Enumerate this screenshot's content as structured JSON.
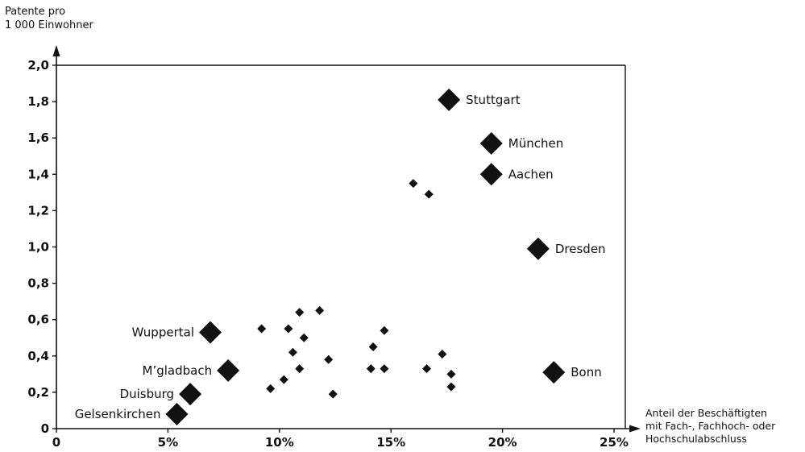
{
  "chart_data": {
    "type": "scatter",
    "title": "",
    "ylabel": "Patente pro\n1 000 Einwohner",
    "xlabel": "Anteil der Beschäftigten\nmit Fach-, Fachhoch- oder\nHochschulabschluss",
    "xlim": [
      0,
      25
    ],
    "ylim": [
      0,
      2.0
    ],
    "x_ticks": [
      0,
      5,
      10,
      15,
      20,
      25
    ],
    "x_tick_labels": [
      "0",
      "5%",
      "10%",
      "15%",
      "20%",
      "25%"
    ],
    "y_ticks": [
      0,
      0.2,
      0.4,
      0.6,
      0.8,
      1.0,
      1.2,
      1.4,
      1.6,
      1.8,
      2.0
    ],
    "y_tick_labels": [
      "0",
      "0,2",
      "0,4",
      "0,6",
      "0,8",
      "1,0",
      "1,2",
      "1,4",
      "1,6",
      "1,8",
      "2,0"
    ],
    "grid": false,
    "marker": "diamond",
    "labeled_points": [
      {
        "label": "Stuttgart",
        "x": 17.6,
        "y": 1.81,
        "label_side": "right"
      },
      {
        "label": "München",
        "x": 19.5,
        "y": 1.57,
        "label_side": "right"
      },
      {
        "label": "Aachen",
        "x": 19.5,
        "y": 1.4,
        "label_side": "right"
      },
      {
        "label": "Dresden",
        "x": 21.6,
        "y": 0.99,
        "label_side": "right"
      },
      {
        "label": "Bonn",
        "x": 22.3,
        "y": 0.31,
        "label_side": "right"
      },
      {
        "label": "Wuppertal",
        "x": 6.9,
        "y": 0.53,
        "label_side": "left"
      },
      {
        "label": "M’gladbach",
        "x": 7.7,
        "y": 0.32,
        "label_side": "left"
      },
      {
        "label": "Duisburg",
        "x": 6.0,
        "y": 0.19,
        "label_side": "left"
      },
      {
        "label": "Gelsenkirchen",
        "x": 5.4,
        "y": 0.08,
        "label_side": "left"
      }
    ],
    "points": [
      {
        "x": 9.2,
        "y": 0.55
      },
      {
        "x": 10.4,
        "y": 0.55
      },
      {
        "x": 10.9,
        "y": 0.64
      },
      {
        "x": 11.8,
        "y": 0.65
      },
      {
        "x": 11.1,
        "y": 0.5
      },
      {
        "x": 10.6,
        "y": 0.42
      },
      {
        "x": 12.2,
        "y": 0.38
      },
      {
        "x": 10.9,
        "y": 0.33
      },
      {
        "x": 10.2,
        "y": 0.27
      },
      {
        "x": 9.6,
        "y": 0.22
      },
      {
        "x": 12.4,
        "y": 0.19
      },
      {
        "x": 14.7,
        "y": 0.54
      },
      {
        "x": 14.2,
        "y": 0.45
      },
      {
        "x": 14.1,
        "y": 0.33
      },
      {
        "x": 14.7,
        "y": 0.33
      },
      {
        "x": 16.0,
        "y": 1.35
      },
      {
        "x": 16.7,
        "y": 1.29
      },
      {
        "x": 17.3,
        "y": 0.41
      },
      {
        "x": 16.6,
        "y": 0.33
      },
      {
        "x": 17.7,
        "y": 0.3
      },
      {
        "x": 17.7,
        "y": 0.23
      }
    ]
  }
}
